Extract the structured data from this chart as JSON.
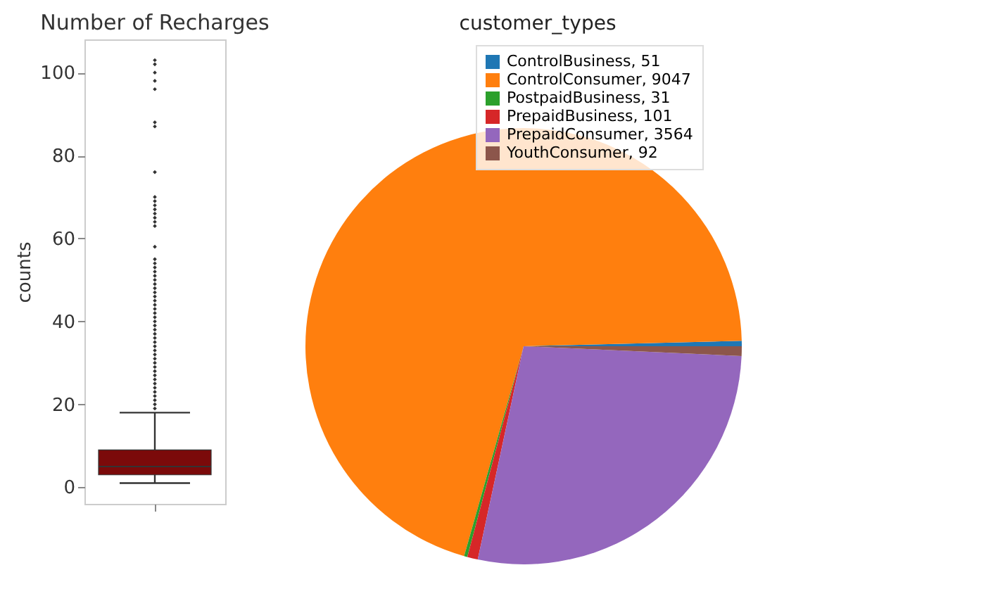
{
  "chart_data": [
    {
      "type": "box",
      "title": "Number of Recharges",
      "ylabel": "counts",
      "categories": [
        null
      ],
      "tick_labels": "y",
      "ylim": [
        -4,
        108
      ],
      "yticks": [
        0,
        20,
        40,
        60,
        80,
        100
      ],
      "series": [
        {
          "color": "#7b0a0a",
          "boxes": [
            {
              "low": 1,
              "q1": 3,
              "median": 5,
              "q3": 9,
              "high": 18,
              "outliers": [
                19,
                20,
                21,
                22,
                23,
                24,
                25,
                26,
                27,
                28,
                29,
                30,
                31,
                32,
                33,
                34,
                35,
                36,
                37,
                38,
                39,
                40,
                41,
                42,
                43,
                44,
                45,
                46,
                47,
                48,
                49,
                50,
                51,
                52,
                53,
                54,
                55,
                58,
                63,
                64,
                65,
                66,
                67,
                68,
                69,
                70,
                76,
                87,
                88,
                96,
                98,
                100,
                102,
                103
              ]
            }
          ]
        }
      ]
    },
    {
      "type": "pie",
      "title": "customer_types",
      "legend": "top right",
      "categories": [
        "ControlBusiness, 51",
        "ControlConsumer, 9047",
        "PostpaidBusiness, 31",
        "PrepaidBusiness, 101",
        "PrepaidConsumer, 3564",
        "YouthConsumer, 92"
      ],
      "values": [
        51,
        9047,
        31,
        101,
        3564,
        92
      ],
      "colors": [
        "#1f77b4",
        "#ff7f0e",
        "#2ca02c",
        "#d62728",
        "#9467bd",
        "#8c564b"
      ]
    }
  ]
}
